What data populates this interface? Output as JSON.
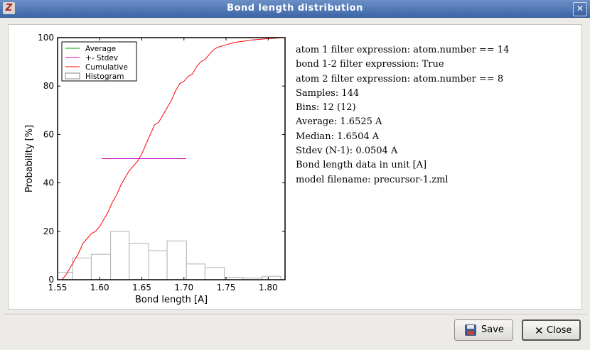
{
  "window": {
    "title": "Bond length distribution",
    "close_glyph": "✕",
    "app_glyph": "Z"
  },
  "info_lines": [
    "atom 1 filter expression: atom.number == 14",
    "bond 1-2 filter expression: True",
    "atom 2 filter expression: atom.number == 8",
    "Samples: 144",
    "Bins: 12 (12)",
    "Average: 1.6525 A",
    "Median: 1.6504 A",
    "Stdev (N-1): 0.0504 A",
    "Bond length data in unit [A]",
    "model filename: precursor-1.zml"
  ],
  "buttons": {
    "save_label": "Save",
    "close_label": "Close"
  },
  "chart_data": {
    "type": "histogram",
    "xlabel": "Bond length [A]",
    "ylabel": "Probability [%]",
    "xlim": [
      1.55,
      1.82
    ],
    "ylim": [
      0,
      100
    ],
    "x_ticks": [
      "1.55",
      "1.60",
      "1.65",
      "1.70",
      "1.75",
      "1.80"
    ],
    "y_ticks": [
      "0",
      "20",
      "40",
      "60",
      "80",
      "100"
    ],
    "legend": {
      "position": "top-left",
      "entries": [
        "Average",
        "+- Stdev",
        "Cumulative",
        "Histogram"
      ]
    },
    "colors": {
      "average": "#00a000",
      "stdev": "#c000c0",
      "cumulative": "#ff0000",
      "histogram": "#b0b0b0"
    },
    "average": 1.6525,
    "stdev": 0.0504,
    "stdev_line_y": 50,
    "histogram": {
      "bin_edges": [
        1.55,
        1.568,
        1.59,
        1.613,
        1.635,
        1.658,
        1.68,
        1.703,
        1.725,
        1.748,
        1.77,
        1.793,
        1.815
      ],
      "values": [
        3,
        9,
        10.5,
        20,
        15,
        12,
        16,
        6.5,
        5,
        1,
        0.7,
        1.4
      ]
    },
    "cumulative": {
      "x": [
        1.555,
        1.56,
        1.565,
        1.57,
        1.575,
        1.58,
        1.585,
        1.59,
        1.595,
        1.6,
        1.605,
        1.61,
        1.615,
        1.62,
        1.625,
        1.63,
        1.635,
        1.64,
        1.645,
        1.65,
        1.655,
        1.66,
        1.665,
        1.67,
        1.675,
        1.68,
        1.685,
        1.69,
        1.695,
        1.7,
        1.705,
        1.71,
        1.715,
        1.72,
        1.725,
        1.73,
        1.735,
        1.74,
        1.75,
        1.76,
        1.77,
        1.78,
        1.79,
        1.8,
        1.81,
        1.815
      ],
      "y": [
        0,
        2,
        5,
        8,
        11,
        15,
        17,
        19,
        20,
        22,
        25,
        28,
        32,
        35,
        39,
        42,
        45,
        47,
        49,
        52,
        56,
        60,
        64,
        65,
        68,
        71,
        74,
        78,
        81,
        82,
        84,
        85,
        88,
        90,
        91,
        93,
        95,
        96,
        97,
        98,
        98.5,
        99,
        99.3,
        99.6,
        99.8,
        100
      ]
    }
  }
}
